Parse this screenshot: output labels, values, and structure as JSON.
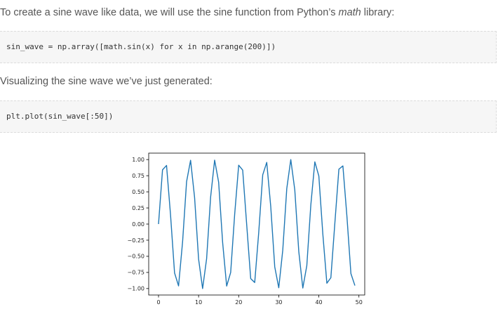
{
  "article": {
    "intro_text": "To create a sine wave like data, we will use the sine function from Python’s",
    "intro_em": "math",
    "intro_tail": "library:",
    "code1": "sin_wave = np.array([math.sin(x) for x in np.arange(200)])",
    "visualize_text": "Visualizing the sine wave we’ve just generated:",
    "code2": "plt.plot(sin_wave[:50])"
  },
  "colors": {
    "line": "#1f77b4",
    "code_bg": "#f6f6f6",
    "text": "#555555"
  },
  "chart_data": {
    "type": "line",
    "title": "",
    "xlabel": "",
    "ylabel": "",
    "xlim": [
      -2.45,
      51.45
    ],
    "ylim": [
      -1.1,
      1.1
    ],
    "grid": false,
    "xticks": [
      0,
      10,
      20,
      30,
      40,
      50
    ],
    "xtick_labels": [
      "0",
      "10",
      "20",
      "30",
      "40",
      "50"
    ],
    "yticks": [
      1.0,
      0.75,
      0.5,
      0.25,
      0.0,
      -0.25,
      -0.5,
      -0.75,
      -1.0
    ],
    "ytick_labels": [
      "1.00",
      "0.75",
      "0.50",
      "0.25",
      "0.00",
      "−0.25",
      "−0.50",
      "−0.75",
      "−1.00"
    ],
    "series": [
      {
        "x": [
          0,
          1,
          2,
          3,
          4,
          5,
          6,
          7,
          8,
          9,
          10,
          11,
          12,
          13,
          14,
          15,
          16,
          17,
          18,
          19,
          20,
          21,
          22,
          23,
          24,
          25,
          26,
          27,
          28,
          29,
          30,
          31,
          32,
          33,
          34,
          35,
          36,
          37,
          38,
          39,
          40,
          41,
          42,
          43,
          44,
          45,
          46,
          47,
          48,
          49
        ],
        "values": [
          0.0,
          0.841,
          0.909,
          0.141,
          -0.757,
          -0.959,
          -0.279,
          0.657,
          0.989,
          0.412,
          -0.544,
          -1.0,
          -0.537,
          0.42,
          0.991,
          0.65,
          -0.288,
          -0.961,
          -0.751,
          0.15,
          0.913,
          0.837,
          -0.009,
          -0.846,
          -0.906,
          -0.132,
          0.763,
          0.956,
          0.271,
          -0.664,
          -0.988,
          -0.404,
          0.551,
          1.0,
          0.529,
          -0.428,
          -0.992,
          -0.644,
          0.296,
          0.964,
          0.745,
          -0.159,
          -0.917,
          -0.832,
          0.018,
          0.851,
          0.902,
          0.124,
          -0.768,
          -0.954
        ]
      }
    ]
  }
}
